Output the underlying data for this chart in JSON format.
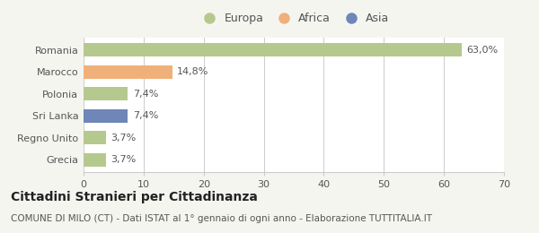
{
  "categories": [
    "Romania",
    "Marocco",
    "Polonia",
    "Sri Lanka",
    "Regno Unito",
    "Grecia"
  ],
  "values": [
    63.0,
    14.8,
    7.4,
    7.4,
    3.7,
    3.7
  ],
  "colors": [
    "#b5c98e",
    "#f0b07a",
    "#b5c98e",
    "#6e86b8",
    "#b5c98e",
    "#b5c98e"
  ],
  "labels": [
    "63,0%",
    "14,8%",
    "7,4%",
    "7,4%",
    "3,7%",
    "3,7%"
  ],
  "xlim": [
    0,
    70
  ],
  "xticks": [
    0,
    10,
    20,
    30,
    40,
    50,
    60,
    70
  ],
  "legend_items": [
    {
      "label": "Europa",
      "color": "#b5c98e"
    },
    {
      "label": "Africa",
      "color": "#f0b07a"
    },
    {
      "label": "Asia",
      "color": "#6e86b8"
    }
  ],
  "title": "Cittadini Stranieri per Cittadinanza",
  "subtitle": "COMUNE DI MILO (CT) - Dati ISTAT al 1° gennaio di ogni anno - Elaborazione TUTTITALIA.IT",
  "background_color": "#f5f5f0",
  "bar_background": "#ffffff",
  "grid_color": "#cccccc",
  "title_fontsize": 10,
  "subtitle_fontsize": 7.5,
  "label_fontsize": 8,
  "tick_fontsize": 8,
  "legend_fontsize": 9
}
